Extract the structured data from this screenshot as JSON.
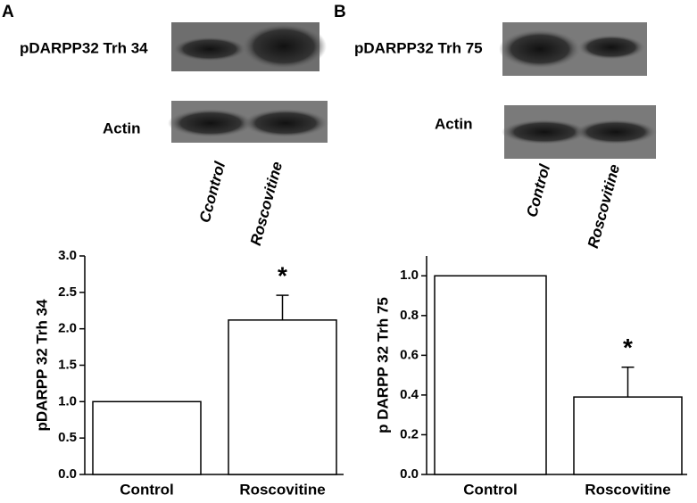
{
  "panels": [
    {
      "letter": "A",
      "blot_labels": [
        "pDARPP32 Trh 34",
        "Actin"
      ],
      "lane_labels": [
        "Ccontrol",
        "Roscovitine"
      ]
    },
    {
      "letter": "B",
      "blot_labels": [
        "pDARPP32 Trh 75",
        "Actin"
      ],
      "lane_labels": [
        "Control",
        "Roscovitine"
      ]
    }
  ],
  "chart_data": [
    {
      "type": "bar",
      "ylabel": "pDARPP 32 Trh 34",
      "categories": [
        "Control",
        "Roscovitine"
      ],
      "values": [
        1.0,
        2.12
      ],
      "errors": [
        null,
        0.34
      ],
      "significance_labels": [
        null,
        "*"
      ],
      "color": "#ffffff",
      "ylim": [
        0,
        3.0
      ],
      "yticks": [
        {
          "value": 0,
          "label": "0.0"
        },
        {
          "value": 0.5,
          "label": "0.5"
        },
        {
          "value": 1.0,
          "label": "1.0"
        },
        {
          "value": 1.5,
          "label": "1.5"
        },
        {
          "value": 2.0,
          "label": "2.0"
        },
        {
          "value": 2.5,
          "label": "2.5"
        },
        {
          "value": 3.0,
          "label": "3.0"
        }
      ]
    },
    {
      "type": "bar",
      "ylabel": "p DARPP 32 Trh 75",
      "categories": [
        "Control",
        "Roscovitine"
      ],
      "values": [
        1.0,
        0.39
      ],
      "errors": [
        null,
        0.15
      ],
      "significance_labels": [
        null,
        "*"
      ],
      "color": "#ffffff",
      "ylim": [
        0,
        1.1
      ],
      "yticks": [
        {
          "value": 0,
          "label": "0.0"
        },
        {
          "value": 0.2,
          "label": "0.2"
        },
        {
          "value": 0.4,
          "label": "0.4"
        },
        {
          "value": 0.6,
          "label": "0.6"
        },
        {
          "value": 0.8,
          "label": "0.8"
        },
        {
          "value": 1.0,
          "label": "1.0"
        }
      ]
    }
  ]
}
